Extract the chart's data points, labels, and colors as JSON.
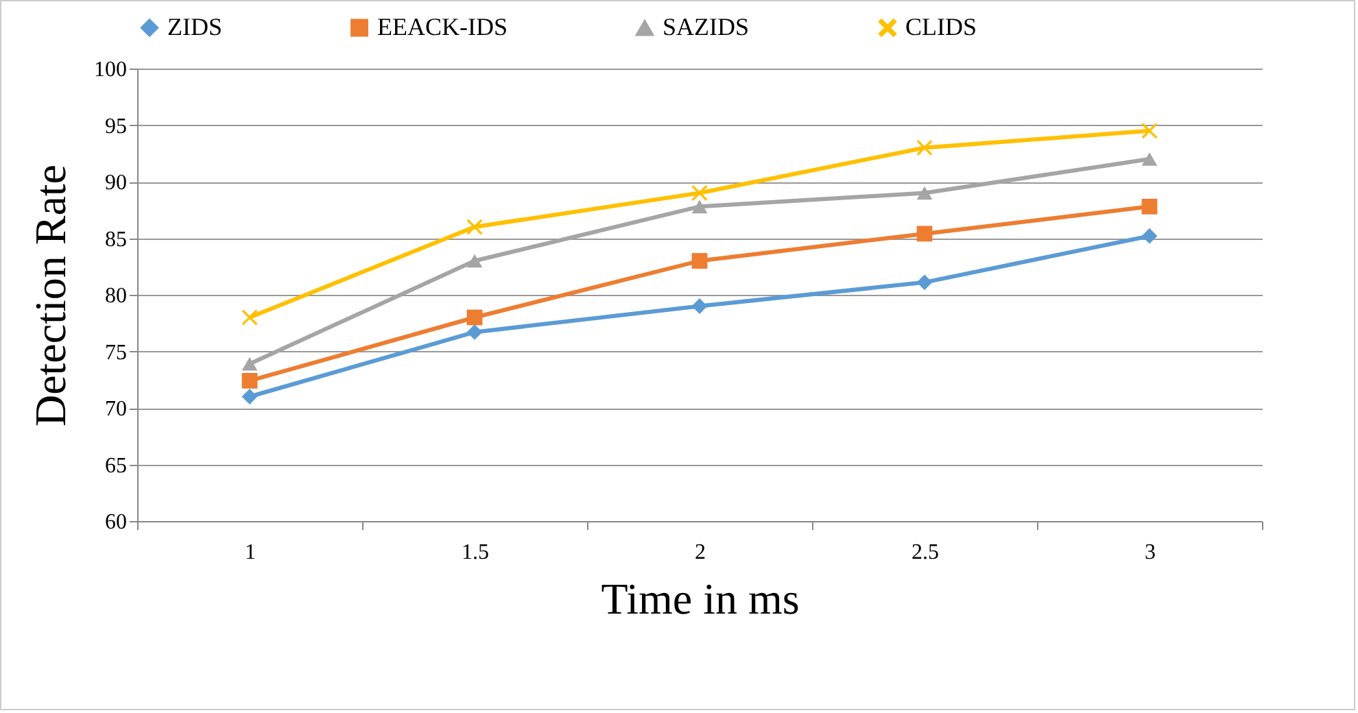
{
  "chart_data": {
    "type": "line",
    "xlabel": "Time in ms",
    "ylabel": "Detection Rate",
    "categories": [
      "1",
      "1.5",
      "2",
      "2.5",
      "3"
    ],
    "series": [
      {
        "name": "ZIDS",
        "color": "#5b9bd5",
        "marker": "diamond",
        "values": [
          71,
          76.7,
          79,
          81.1,
          85.2
        ]
      },
      {
        "name": "EEACK-IDS",
        "color": "#ed7d31",
        "marker": "square",
        "values": [
          72.4,
          78,
          83,
          85.4,
          87.8
        ]
      },
      {
        "name": "SAZIDS",
        "color": "#a5a5a5",
        "marker": "triangle",
        "values": [
          73.9,
          83,
          87.8,
          89,
          92
        ]
      },
      {
        "name": "CLIDS",
        "color": "#ffc000",
        "marker": "cross",
        "values": [
          78,
          86,
          89,
          93,
          94.5
        ]
      }
    ],
    "ylim": [
      60,
      100
    ],
    "yticks": [
      60,
      65,
      70,
      75,
      80,
      85,
      90,
      95,
      100
    ],
    "grid": "y",
    "legend": "top",
    "line_style": "solid"
  }
}
